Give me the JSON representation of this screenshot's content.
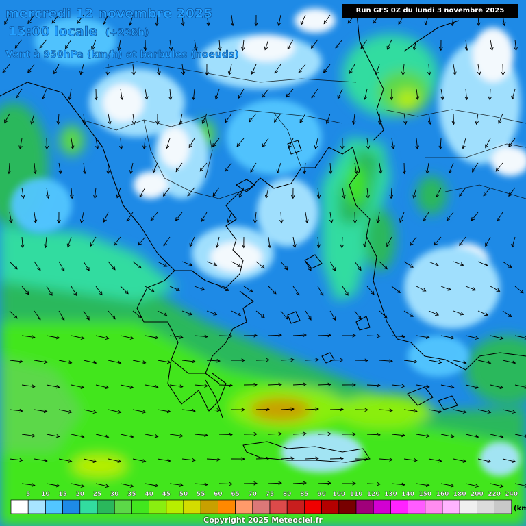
{
  "header": {
    "date_line": "mercredi 12 novembre 2025",
    "time_main": "13:00 locale",
    "time_hours": "(+228h)",
    "variable": "Vent à 950hPa (km/h) et barbules (noeuds)"
  },
  "run_label": "Run GFS 0Z du lundi 3 novembre 2025",
  "legend": {
    "unit": "(km",
    "labels": [
      "5",
      "10",
      "15",
      "20",
      "25",
      "30",
      "35",
      "40",
      "45",
      "50",
      "55",
      "60",
      "65",
      "70",
      "75",
      "80",
      "85",
      "90",
      "100",
      "110",
      "120",
      "130",
      "140",
      "150",
      "160",
      "180",
      "200",
      "220",
      "240"
    ],
    "colors": [
      "#ffffff",
      "#a8e4ff",
      "#52c6ff",
      "#1e8ae6",
      "#32dca0",
      "#2ab85c",
      "#5cd848",
      "#42e61e",
      "#8aee10",
      "#b8ee00",
      "#d4dc00",
      "#c8a000",
      "#ff8800",
      "#ff9a6a",
      "#dc7878",
      "#dc4a4a",
      "#c81e1e",
      "#f00000",
      "#b40000",
      "#780000",
      "#a0007a",
      "#d200d2",
      "#ff22ff",
      "#ff5cff",
      "#ff8cf0",
      "#ffb4ff",
      "#f0f0f0",
      "#dcdcdc",
      "#c8c8c8"
    ]
  },
  "copyright": "Copyright 2025 Meteociel.fr",
  "map_colors": {
    "sea_base": "#1e8ae6",
    "coastline": "#000000",
    "arrow": "#000000"
  }
}
